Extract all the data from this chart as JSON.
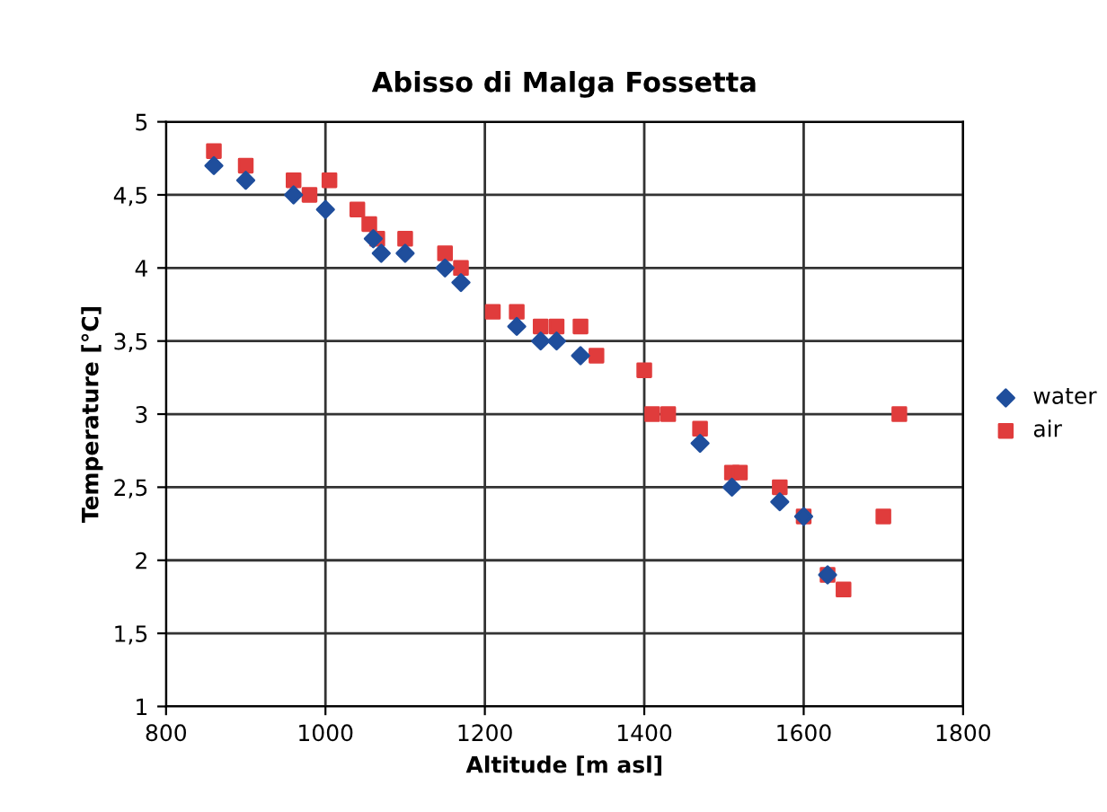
{
  "chart_data": {
    "type": "scatter",
    "title": "Abisso di Malga Fossetta",
    "xlabel": "Altitude [m asl]",
    "ylabel": "Temperature [°C]",
    "series": [
      {
        "name": "water",
        "color": "#1f4e9c",
        "marker": "diamond",
        "x": [
          860,
          900,
          960,
          1000,
          1060,
          1070,
          1100,
          1150,
          1170,
          1240,
          1270,
          1290,
          1320,
          1470,
          1510,
          1570,
          1600,
          1630
        ],
        "values": [
          4.7,
          4.6,
          4.5,
          4.4,
          4.2,
          4.1,
          4.1,
          4.0,
          3.9,
          3.6,
          3.5,
          3.5,
          3.4,
          2.8,
          2.5,
          2.4,
          2.3,
          1.9
        ]
      },
      {
        "name": "air",
        "color": "#e03c3c",
        "marker": "square",
        "x": [
          860,
          900,
          960,
          980,
          1005,
          1040,
          1055,
          1065,
          1100,
          1150,
          1170,
          1210,
          1240,
          1270,
          1290,
          1320,
          1340,
          1400,
          1410,
          1430,
          1470,
          1510,
          1520,
          1570,
          1600,
          1630,
          1650,
          1700,
          1720
        ],
        "values": [
          4.8,
          4.7,
          4.6,
          4.5,
          4.6,
          4.4,
          4.3,
          4.2,
          4.2,
          4.1,
          4.0,
          3.7,
          3.7,
          3.6,
          3.6,
          3.6,
          3.4,
          3.3,
          3.0,
          3.0,
          2.9,
          2.6,
          2.6,
          2.5,
          2.3,
          1.9,
          1.8,
          2.3,
          3.0
        ]
      }
    ],
    "xlim": [
      800,
      1800
    ],
    "xticks": [
      800,
      1000,
      1200,
      1400,
      1600,
      1800
    ],
    "ylim": [
      1,
      5
    ],
    "yticks": [
      1,
      {
        "value": 1.5,
        "label": "1,5"
      },
      2,
      {
        "value": 2.5,
        "label": "2,5"
      },
      3,
      {
        "value": 3.5,
        "label": "3,5"
      },
      4,
      {
        "value": 4.5,
        "label": "4,5"
      },
      5
    ],
    "grid": true,
    "legend": "right"
  }
}
